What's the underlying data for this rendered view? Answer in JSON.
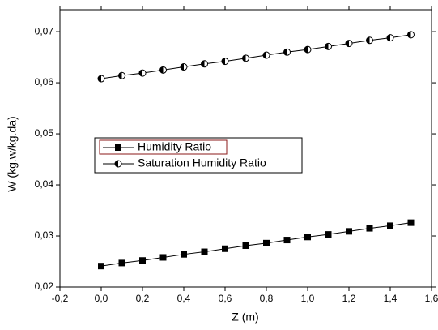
{
  "chart_data": {
    "type": "line",
    "x_label": "Z (m)",
    "y_label": "W (kg.w/kg.da)",
    "x": [
      0,
      0.1,
      0.2,
      0.3,
      0.4,
      0.5,
      0.6,
      0.7,
      0.8,
      0.9,
      1.0,
      1.1,
      1.2,
      1.3,
      1.4,
      1.5
    ],
    "series": [
      {
        "name": "Humidity Ratio",
        "color": "#000000",
        "marker": "square",
        "values": [
          0.0241,
          0.0247,
          0.0252,
          0.0258,
          0.0264,
          0.0269,
          0.0275,
          0.0281,
          0.0286,
          0.0292,
          0.0298,
          0.0303,
          0.0309,
          0.0315,
          0.032,
          0.0326
        ]
      },
      {
        "name": "Saturation Humidity Ratio",
        "color": "#000000",
        "marker": "half-circle",
        "values": [
          0.0608,
          0.0614,
          0.0619,
          0.0625,
          0.0631,
          0.0637,
          0.0642,
          0.0648,
          0.0654,
          0.066,
          0.0665,
          0.0671,
          0.0677,
          0.0683,
          0.0688,
          0.0694
        ]
      }
    ],
    "xlim": [
      -0.2,
      1.6
    ],
    "xticks": [
      {
        "value": -0.2,
        "label": "-0,2"
      },
      {
        "value": 0,
        "label": "0,0"
      },
      {
        "value": 0.2,
        "label": "0,2"
      },
      {
        "value": 0.4,
        "label": "0,4"
      },
      {
        "value": 0.6,
        "label": "0,6"
      },
      {
        "value": 0.8,
        "label": "0,8"
      },
      {
        "value": 1.0,
        "label": "1,0"
      },
      {
        "value": 1.2,
        "label": "1,2"
      },
      {
        "value": 1.4,
        "label": "1,4"
      },
      {
        "value": 1.6,
        "label": "1,6"
      }
    ],
    "ylim": [
      0.02,
      0.0743
    ],
    "yticks": [
      {
        "value": 0.02,
        "label": "0,02"
      },
      {
        "value": 0.03,
        "label": "0,03"
      },
      {
        "value": 0.04,
        "label": "0,04"
      },
      {
        "value": 0.05,
        "label": "0,05"
      },
      {
        "value": 0.06,
        "label": "0,06"
      },
      {
        "value": 0.07,
        "label": "0,07"
      }
    ],
    "grid": false
  }
}
